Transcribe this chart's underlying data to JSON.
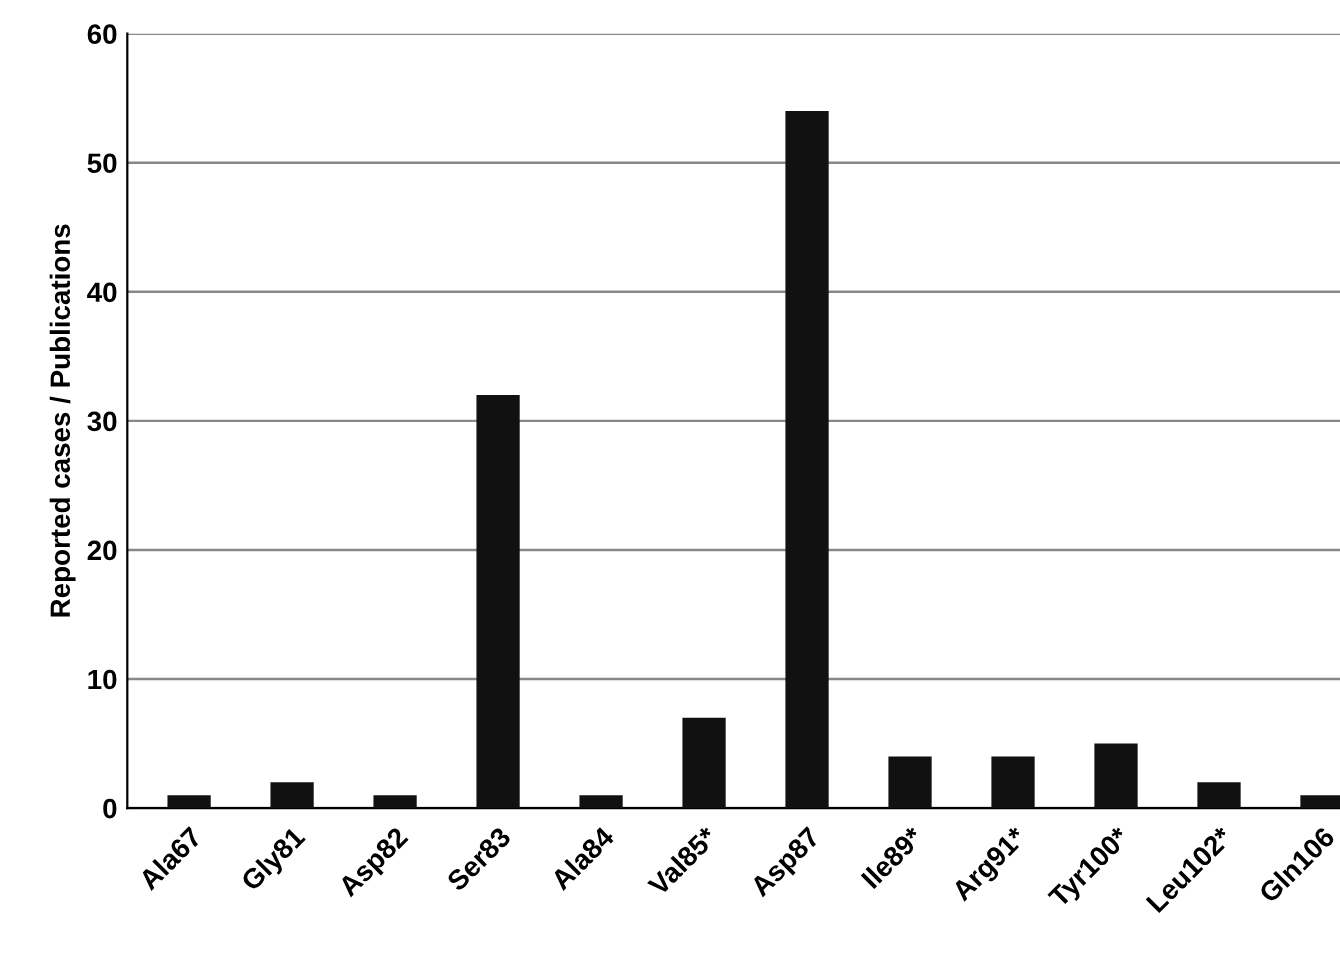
{
  "chart_data": {
    "type": "bar",
    "ylabel": "Reported cases / Publications",
    "categories": [
      "Ala67",
      "Gly81",
      "Asp82",
      "Ser83",
      "Ala84",
      "Val85*",
      "Asp87",
      "Ile89*",
      "Arg91*",
      "Tyr100*",
      "Leu102*",
      "Gln106"
    ],
    "values": [
      1,
      2,
      1,
      32,
      1,
      7,
      54,
      4,
      4,
      5,
      2,
      1
    ],
    "color": "#111111",
    "ylim": [
      0,
      60
    ],
    "yticks": [
      0,
      10,
      20,
      30,
      40,
      50,
      60
    ],
    "grid": "y"
  }
}
